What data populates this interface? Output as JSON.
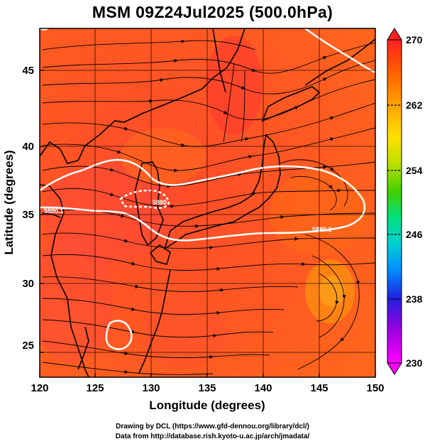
{
  "title": "MSM 09Z24Jul2025 (500.0hPa)",
  "x_axis": {
    "label": "Longitude (degrees)",
    "ticks": [
      "120",
      "125",
      "130",
      "135",
      "140",
      "145",
      "150"
    ]
  },
  "y_axis": {
    "label": "Latitude (degrees)",
    "ticks": [
      "25",
      "30",
      "35",
      "40",
      "45"
    ]
  },
  "colorbar": {
    "ticks": [
      "270",
      "262",
      "254",
      "246",
      "238",
      "230"
    ],
    "colors": [
      "#ff00ff",
      "#a000e0",
      "#2020e0",
      "#0090ff",
      "#00d0d0",
      "#00e080",
      "#40d000",
      "#c0e000",
      "#ffe000",
      "#ffa000",
      "#ff6000",
      "#ff2020"
    ]
  },
  "contour_labels": {
    "west": "5880.1",
    "central": "5880",
    "east": "5880.1"
  },
  "credits": {
    "line1": "Drawing by DCL (https://www.gfd-dennou.org/library/dcl/)",
    "line2": "Data from http://database.rish.kyoto-u.ac.jp/arch/jmadata/"
  },
  "chart_data": {
    "type": "heatmap",
    "title": "MSM 09Z24Jul2025 (500.0hPa)",
    "xlabel": "Longitude (degrees)",
    "ylabel": "Latitude (degrees)",
    "xlim": [
      120,
      150
    ],
    "ylim": [
      22.4,
      47.6
    ],
    "xticks": [
      120,
      125,
      130,
      135,
      140,
      145,
      150
    ],
    "yticks": [
      25,
      30,
      35,
      40,
      45
    ],
    "color_scale": {
      "min": 230,
      "max": 270,
      "ticks": [
        230,
        238,
        246,
        254,
        262,
        270
      ]
    },
    "contour": {
      "level": 5880,
      "color": "#ffffff"
    },
    "overlay": "streamlines",
    "grid": true
  }
}
